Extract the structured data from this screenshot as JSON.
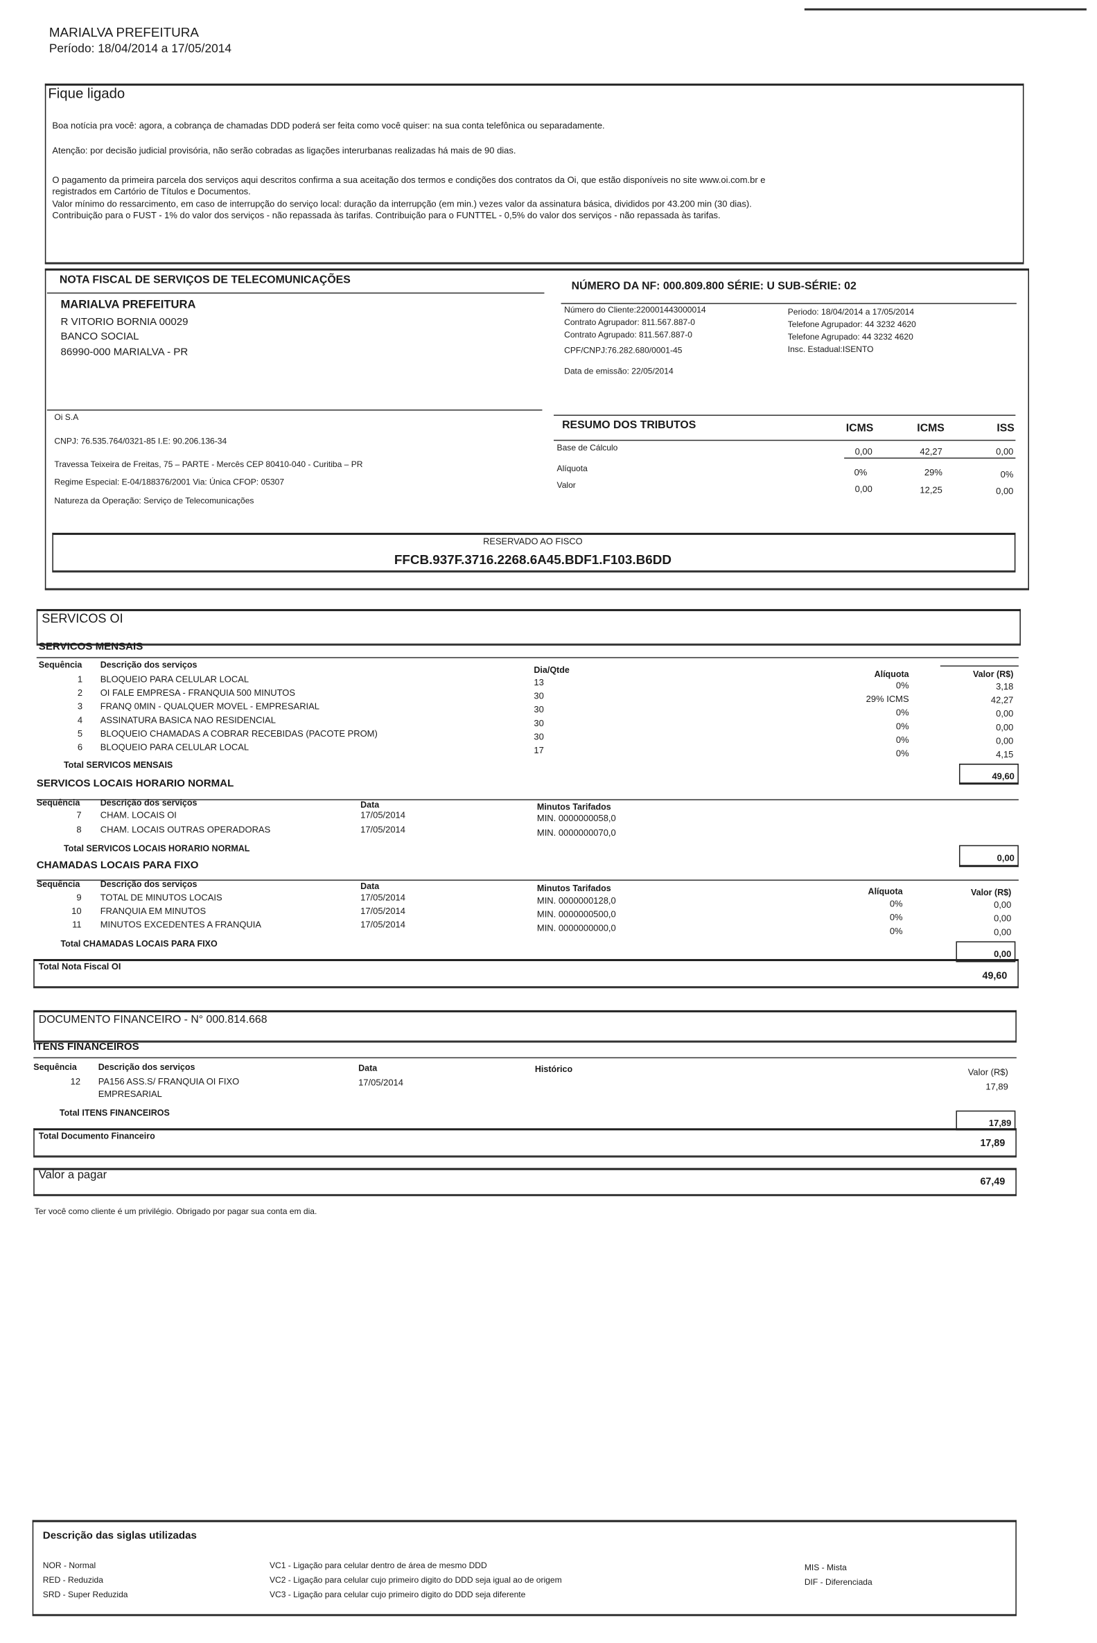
{
  "header": {
    "company": "MARIALVA PREFEITURA",
    "period": "Período: 18/04/2014 a 17/05/2014"
  },
  "notice": {
    "title": "Fique ligado",
    "lines": [
      "Boa notícia pra você: agora, a cobrança de chamadas DDD poderá ser feita como você quiser: na sua conta telefônica ou separadamente.",
      "Atenção: por decisão judicial provisória, não serão cobradas as ligações interurbanas realizadas há mais de 90 dias.",
      "O pagamento da primeira parcela dos serviços aqui descritos confirma a sua aceitação dos termos e condições dos contratos da Oi, que estão disponíveis no site www.oi.com.br e",
      "registrados em Cartório de Títulos e Documentos.",
      "Valor mínimo do ressarcimento, em caso de interrupção do serviço local: duração da interrupção (em min.) vezes valor da assinatura básica, divididos por 43.200 min (30 dias).",
      "Contribuição para o FUST - 1% do valor dos serviços - não repassada às tarifas.  Contribuição para o FUNTTEL - 0,5% do valor dos serviços - não repassada às tarifas."
    ]
  },
  "nf": {
    "title": "NOTA FISCAL DE SERVIÇOS DE TELECOMUNICAÇÕES",
    "number": "NÚMERO DA NF: 000.809.800  SÉRIE: U SUB-SÉRIE: 02",
    "customer": {
      "name": "MARIALVA PREFEITURA",
      "street": "R  VITORIO BORNIA 00029",
      "district": "BANCO SOCIAL",
      "city": "86990-000 MARIALVA - PR"
    },
    "info_mid": [
      "Número do Cliente:220001443000014",
      "Contrato Agrupador: 811.567.887-0",
      "Contrato Agrupado:  811.567.887-0",
      "CPF/CNPJ:76.282.680/0001-45",
      "Data de emissão: 22/05/2014"
    ],
    "info_right": [
      "Periodo: 18/04/2014 a 17/05/2014",
      "Telefone Agrupador: 44 3232 4620",
      "Telefone Agrupado: 44 3232 4620",
      "Insc. Estadual:ISENTO"
    ],
    "issuer": {
      "name": "Oi S.A",
      "cnpj": "CNPJ: 76.535.764/0321-85  I.E: 90.206.136-34",
      "address": "Travessa Teixeira de Freitas, 75 – PARTE - Mercês  CEP 80410-040 - Curitiba – PR",
      "regime": "Regime Especial: E-04/188376/2001 Via: Única CFOP: 05307",
      "natureza": "Natureza da Operação: Serviço de Telecomunicações"
    },
    "taxes": {
      "title": "RESUMO DOS TRIBUTOS",
      "headers": [
        "ICMS",
        "ICMS",
        "ISS"
      ],
      "rows": [
        {
          "label": "Base de Cálculo",
          "values": [
            "0,00",
            "42,27",
            "0,00"
          ]
        },
        {
          "label": "Alíquota",
          "values": [
            "0%",
            "29%",
            "0%"
          ]
        },
        {
          "label": "Valor",
          "values": [
            "0,00",
            "12,25",
            "0,00"
          ]
        }
      ]
    },
    "fisco": {
      "label": "RESERVADO AO FISCO",
      "code": "FFCB.937F.3716.2268.6A45.BDF1.F103.B6DD"
    }
  },
  "services": {
    "title": "SERVICOS OI",
    "mensais": {
      "title": "SERVICOS MENSAIS",
      "headers": {
        "seq": "Sequência",
        "desc": "Descrição dos serviços",
        "qty": "Dia/Qtde",
        "rate": "Alíquota",
        "value": "Valor (R$)"
      },
      "rows": [
        {
          "seq": "1",
          "desc": "BLOQUEIO PARA CELULAR LOCAL",
          "qty": "13",
          "rate": "0%",
          "value": "3,18"
        },
        {
          "seq": "2",
          "desc": "OI FALE EMPRESA - FRANQUIA 500 MINUTOS",
          "qty": "30",
          "rate": "29% ICMS",
          "value": "42,27"
        },
        {
          "seq": "3",
          "desc": "FRANQ 0MIN - QUALQUER MOVEL - EMPRESARIAL",
          "qty": "30",
          "rate": "0%",
          "value": "0,00"
        },
        {
          "seq": "4",
          "desc": "ASSINATURA BASICA NAO RESIDENCIAL",
          "qty": "30",
          "rate": "0%",
          "value": "0,00"
        },
        {
          "seq": "5",
          "desc": "BLOQUEIO CHAMADAS A COBRAR RECEBIDAS (PACOTE PROM)",
          "qty": "30",
          "rate": "0%",
          "value": "0,00"
        },
        {
          "seq": "6",
          "desc": "BLOQUEIO PARA CELULAR LOCAL",
          "qty": "17",
          "rate": "0%",
          "value": "4,15"
        }
      ],
      "total_label": "Total SERVICOS MENSAIS",
      "total": "49,60"
    },
    "locais": {
      "title": "SERVICOS LOCAIS HORARIO NORMAL",
      "headers": {
        "seq": "Sequência",
        "desc": "Descrição dos serviços",
        "date": "Data",
        "minutes": "Minutos Tarifados"
      },
      "rows": [
        {
          "seq": "7",
          "desc": "CHAM. LOCAIS OI",
          "date": "17/05/2014",
          "minutes": "MIN. 0000000058,0"
        },
        {
          "seq": "8",
          "desc": "CHAM. LOCAIS OUTRAS OPERADORAS",
          "date": "17/05/2014",
          "minutes": "MIN. 0000000070,0"
        }
      ],
      "total_label": "Total SERVICOS LOCAIS HORARIO NORMAL",
      "total": "0,00"
    },
    "fixo": {
      "title": "CHAMADAS LOCAIS PARA FIXO",
      "headers": {
        "seq": "Sequência",
        "desc": "Descrição dos serviços",
        "date": "Data",
        "minutes": "Minutos Tarifados",
        "rate": "Alíquota",
        "value": "Valor (R$)"
      },
      "rows": [
        {
          "seq": "9",
          "desc": "TOTAL DE MINUTOS LOCAIS",
          "date": "17/05/2014",
          "minutes": "MIN. 0000000128,0",
          "rate": "0%",
          "value": "0,00"
        },
        {
          "seq": "10",
          "desc": "FRANQUIA EM MINUTOS",
          "date": "17/05/2014",
          "minutes": "MIN. 0000000500,0",
          "rate": "0%",
          "value": "0,00"
        },
        {
          "seq": "11",
          "desc": "MINUTOS EXCEDENTES A FRANQUIA",
          "date": "17/05/2014",
          "minutes": "MIN. 0000000000,0",
          "rate": "0%",
          "value": "0,00"
        }
      ],
      "total_label": "Total CHAMADAS LOCAIS PARA FIXO",
      "total": "0,00"
    },
    "nf_total_label": "Total Nota Fiscal  OI",
    "nf_total": "49,60"
  },
  "financeiro": {
    "title": "DOCUMENTO FINANCEIRO - N° 000.814.668",
    "section": "ITENS FINANCEIROS",
    "headers": {
      "seq": "Sequência",
      "desc": "Descrição dos serviços",
      "date": "Data",
      "hist": "Histórico",
      "value": "Valor (R$)"
    },
    "row": {
      "seq": "12",
      "desc1": "PA156 ASS.S/ FRANQUIA OI FIXO",
      "desc2": "EMPRESARIAL",
      "date": "17/05/2014",
      "value": "17,89"
    },
    "total_label": "Total ITENS FINANCEIROS",
    "total": "17,89",
    "doc_total_label": "Total Documento Financeiro",
    "doc_total": "17,89"
  },
  "payment": {
    "label": "Valor a pagar",
    "value": "67,49"
  },
  "thanks": "Ter você como cliente é um privilégio. Obrigado por pagar sua conta em dia.",
  "siglas": {
    "title": "Descrição das siglas utilizadas",
    "col1": [
      "NOR - Normal",
      "RED - Reduzida",
      "SRD - Super Reduzida"
    ],
    "col2": [
      "VC1 - Ligação para celular dentro de área de mesmo DDD",
      "VC2 - Ligação para celular cujo primeiro digito do DDD seja igual ao de origem",
      "VC3 - Ligação para celular cujo primeiro digito do DDD seja diferente"
    ],
    "col3": [
      "MIS - Mista",
      "DIF - Diferenciada"
    ]
  }
}
